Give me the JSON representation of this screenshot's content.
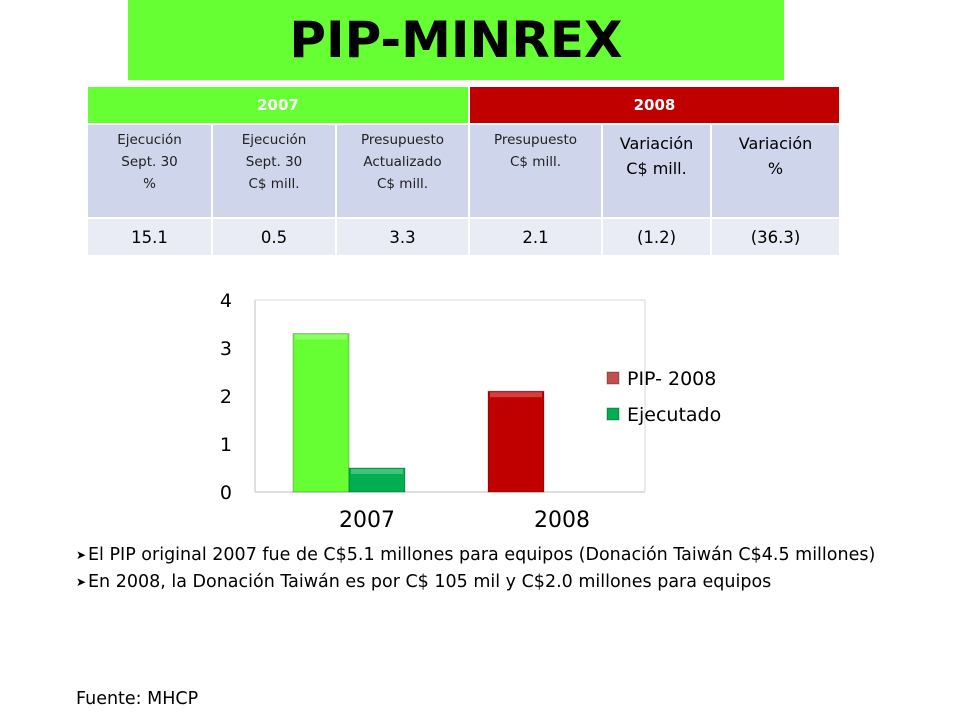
{
  "title": "PIP-MINREX",
  "table": {
    "year_headers": [
      "2007",
      "2008"
    ],
    "columns": [
      [
        "Ejecución",
        "Sept. 30",
        "%"
      ],
      [
        "Ejecución",
        "Sept. 30",
        "C$ mill."
      ],
      [
        "Presupuesto",
        "Actualizado",
        "C$ mill."
      ],
      [
        "Presupuesto",
        "C$ mill."
      ],
      [
        "Variación",
        "C$ mill."
      ],
      [
        "Variación",
        "%"
      ]
    ],
    "values": [
      "15.1",
      "0.5",
      "3.3",
      "2.1",
      "(1.2)",
      "(36.3)"
    ]
  },
  "chart_data": {
    "type": "bar",
    "categories": [
      "2007",
      "2008"
    ],
    "series": [
      {
        "name": "PIP- 2008",
        "values": [
          3.3,
          2.1
        ],
        "colors": [
          "#66ff33",
          "#c00000"
        ]
      },
      {
        "name": "Ejecutado",
        "values": [
          0.5,
          null
        ],
        "colors": [
          "#00b050",
          "#00b050"
        ]
      }
    ],
    "yticks": [
      "0",
      "1",
      "2",
      "3",
      "4"
    ],
    "ylim": [
      0,
      4
    ],
    "legend_position": "right",
    "legend_colors": [
      "#c0504d",
      "#00b050"
    ],
    "grid": false
  },
  "bullets": [
    "El PIP original 2007 fue de C$5.1 millones para equipos (Donación Taiwán C$4.5 millones)",
    "En 2008, la Donación Taiwán es por C$ 105 mil y C$2.0 millones para equipos"
  ],
  "source": "Fuente: MHCP"
}
